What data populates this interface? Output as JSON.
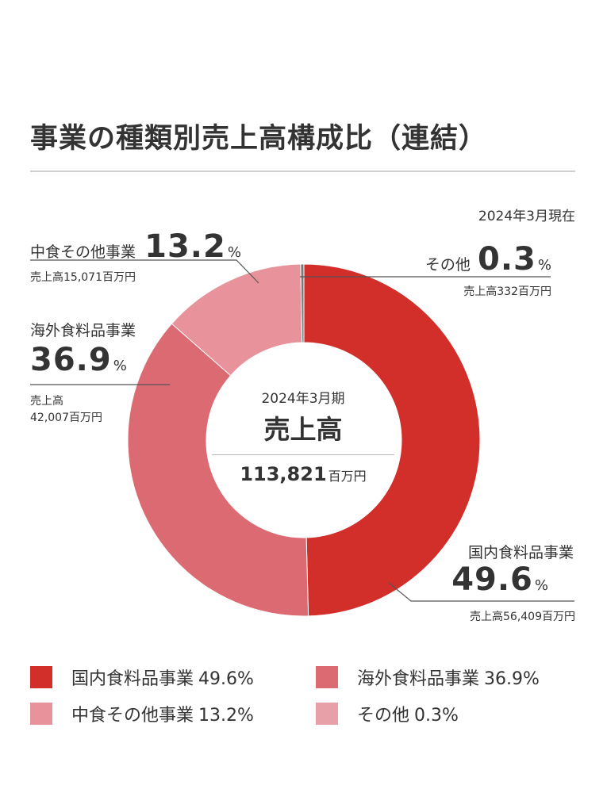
{
  "title": "事業の種類別売上高構成比（連結）",
  "as_of": "2024年3月現在",
  "center": {
    "period": "2024年3月期",
    "label": "売上高",
    "total": "113,821",
    "unit": "百万円"
  },
  "segments": [
    {
      "name": "国内食料品事業",
      "pct_text": "49.6",
      "pct_sign": "%",
      "sales_text": "売上高56,409百万円"
    },
    {
      "name": "海外食料品事業",
      "pct_text": "36.9",
      "pct_sign": "%",
      "sales_prefix": "売上高",
      "sales_amount": "42,007百万円"
    },
    {
      "name": "中食その他事業",
      "pct_text": "13.2",
      "pct_sign": "%",
      "sales_text": "売上高15,071百万円"
    },
    {
      "name": "その他",
      "pct_text": "0.3",
      "pct_sign": "%",
      "sales_text": "売上高332百万円"
    }
  ],
  "legend": [
    {
      "label": "国内食料品事業",
      "pct": "49.6%"
    },
    {
      "label": "海外食料品事業",
      "pct": "36.9%"
    },
    {
      "label": "中食その他事業",
      "pct": "13.2%"
    },
    {
      "label": "その他",
      "pct": "0.3%"
    }
  ],
  "colors": {
    "domestic": "#d22f2b",
    "overseas": "#dc6a72",
    "nakashoku": "#e8929b",
    "other": "#7a7a7a",
    "legend_other": "#e8a0a8",
    "leader": "#555555"
  },
  "chart_data": {
    "type": "pie",
    "categories": [
      "国内食料品事業",
      "海外食料品事業",
      "中食その他事業",
      "その他"
    ],
    "values": [
      49.6,
      36.9,
      13.2,
      0.3
    ],
    "sales_million_yen": [
      56409,
      42007,
      15071,
      332
    ],
    "total_million_yen": 113821,
    "title": "事業の種類別売上高構成比（連結）",
    "direction": "clockwise from top",
    "legend_position": "bottom"
  }
}
